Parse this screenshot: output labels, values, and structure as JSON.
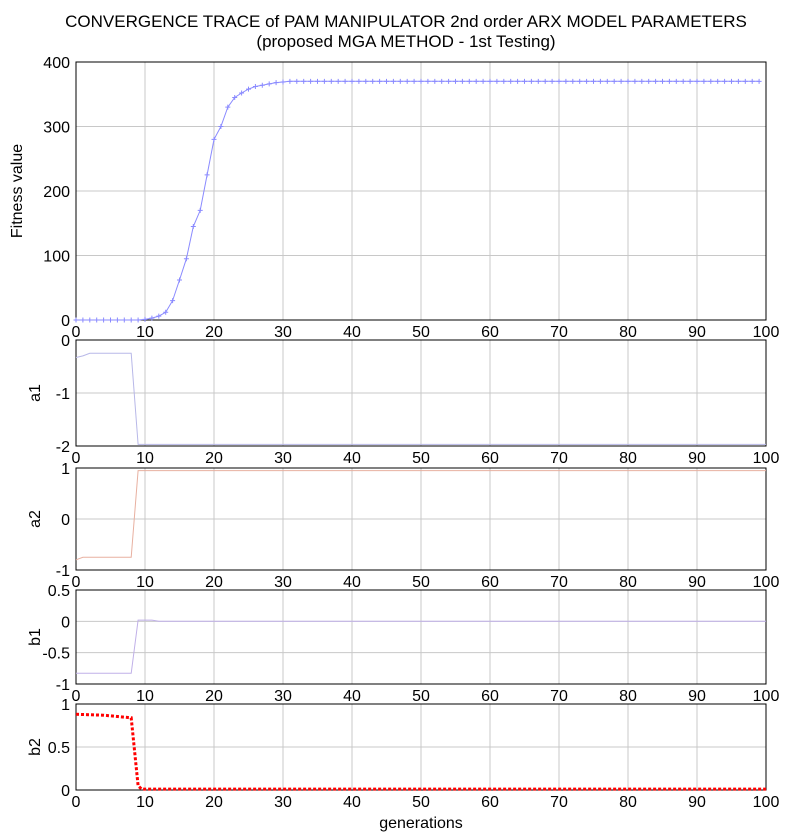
{
  "title": {
    "line1": "CONVERGENCE TRACE of PAM MANIPULATOR 2nd order ARX MODEL PARAMETERS",
    "line2": "(proposed MGA METHOD - 1st Testing)"
  },
  "colors": {
    "fitness": "#8a8aff",
    "a1": "#b8b8e8",
    "a2": "#e8b0a0",
    "b1": "#c0b0e8",
    "b2": "#ff0000",
    "grid": "#c8c8c8"
  },
  "chart_data": [
    {
      "type": "line",
      "id": "fitness",
      "ylabel": "Fitness value",
      "xlabel": "",
      "xlim": [
        0,
        100
      ],
      "ylim": [
        0,
        400
      ],
      "xticks": [
        0,
        10,
        20,
        30,
        40,
        50,
        60,
        70,
        80,
        90,
        100
      ],
      "yticks": [
        0,
        100,
        200,
        300,
        400
      ],
      "marker": "plus",
      "series": [
        {
          "x": [
            0,
            1,
            2,
            3,
            4,
            5,
            6,
            7,
            8,
            9,
            10,
            11,
            12,
            13,
            14,
            15,
            16,
            17,
            18,
            19,
            20,
            21,
            22,
            23,
            24,
            25,
            26,
            27,
            28,
            29,
            30,
            31,
            32,
            33,
            34,
            35,
            36,
            37,
            38,
            39,
            40,
            41,
            42,
            43,
            44,
            45,
            46,
            47,
            48,
            49,
            50,
            51,
            52,
            53,
            54,
            55,
            56,
            57,
            58,
            59,
            60,
            61,
            62,
            63,
            64,
            65,
            66,
            67,
            68,
            69,
            70,
            71,
            72,
            73,
            74,
            75,
            76,
            77,
            78,
            79,
            80,
            81,
            82,
            83,
            84,
            85,
            86,
            87,
            88,
            89,
            90,
            91,
            92,
            93,
            94,
            95,
            96,
            97,
            98,
            99
          ],
          "y": [
            0,
            0,
            0,
            0,
            0,
            0,
            0,
            0,
            0,
            0,
            1,
            3,
            6,
            12,
            30,
            62,
            95,
            145,
            170,
            225,
            280,
            300,
            330,
            345,
            352,
            358,
            362,
            364,
            366,
            368,
            369,
            370,
            370,
            370,
            370,
            370,
            370,
            370,
            370,
            370,
            370,
            370,
            370,
            370,
            370,
            370,
            370,
            370,
            370,
            370,
            370,
            370,
            370,
            370,
            370,
            370,
            370,
            370,
            370,
            370,
            370,
            370,
            370,
            370,
            370,
            370,
            370,
            370,
            370,
            370,
            370,
            370,
            370,
            370,
            370,
            370,
            370,
            370,
            370,
            370,
            370,
            370,
            370,
            370,
            370,
            370,
            370,
            370,
            370,
            370,
            370,
            370,
            370,
            370,
            370,
            370,
            370,
            370,
            370,
            370
          ]
        }
      ]
    },
    {
      "type": "line",
      "id": "a1",
      "ylabel": "a1",
      "xlim": [
        0,
        100
      ],
      "ylim": [
        -2,
        0
      ],
      "xticks": [
        0,
        10,
        20,
        30,
        40,
        50,
        60,
        70,
        80,
        90,
        100
      ],
      "yticks": [
        -2,
        -1,
        0
      ],
      "series": [
        {
          "x": [
            0,
            1,
            2,
            3,
            8,
            9,
            100
          ],
          "y": [
            -0.33,
            -0.3,
            -0.25,
            -0.25,
            -0.25,
            -1.97,
            -1.97
          ]
        }
      ]
    },
    {
      "type": "line",
      "id": "a2",
      "ylabel": "a2",
      "xlim": [
        0,
        100
      ],
      "ylim": [
        -1,
        1
      ],
      "xticks": [
        0,
        10,
        20,
        30,
        40,
        50,
        60,
        70,
        80,
        90,
        100
      ],
      "yticks": [
        -1,
        0,
        1
      ],
      "series": [
        {
          "x": [
            0,
            1,
            2,
            8,
            9,
            100
          ],
          "y": [
            -0.8,
            -0.75,
            -0.75,
            -0.75,
            0.95,
            0.95
          ]
        }
      ]
    },
    {
      "type": "line",
      "id": "b1",
      "ylabel": "b1",
      "xlim": [
        0,
        100
      ],
      "ylim": [
        -1,
        0.5
      ],
      "xticks": [
        0,
        10,
        20,
        30,
        40,
        50,
        60,
        70,
        80,
        90,
        100
      ],
      "yticks": [
        -1,
        -0.5,
        0,
        0.5
      ],
      "series": [
        {
          "x": [
            0,
            8,
            9,
            11,
            12,
            100
          ],
          "y": [
            -0.83,
            -0.83,
            0.02,
            0.02,
            0,
            0
          ]
        }
      ]
    },
    {
      "type": "line",
      "id": "b2",
      "ylabel": "b2",
      "xlabel": "generations",
      "xlim": [
        0,
        100
      ],
      "ylim": [
        0,
        1
      ],
      "xticks": [
        0,
        10,
        20,
        30,
        40,
        50,
        60,
        70,
        80,
        90,
        100
      ],
      "yticks": [
        0,
        0.5,
        1
      ],
      "linestyle": "dotted",
      "series": [
        {
          "x": [
            0,
            4,
            8,
            9,
            9.5,
            100
          ],
          "y": [
            0.88,
            0.87,
            0.84,
            0.05,
            0.01,
            0.01
          ]
        }
      ]
    }
  ]
}
